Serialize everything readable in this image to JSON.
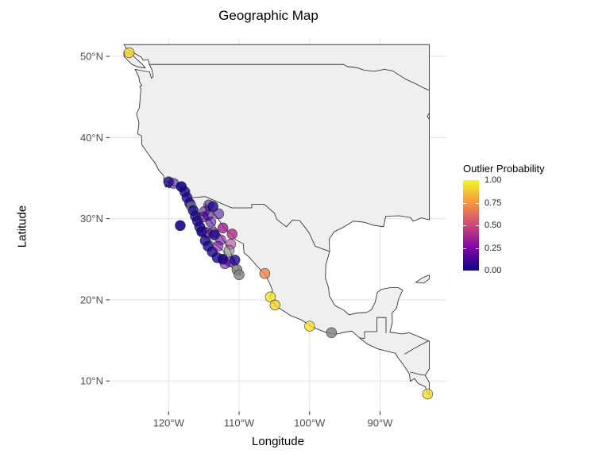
{
  "title": "Geographic Map",
  "axes": {
    "x": {
      "label": "Longitude",
      "ticks": [
        {
          "value": -120,
          "label": "120°W"
        },
        {
          "value": -110,
          "label": "110°W"
        },
        {
          "value": -100,
          "label": "100°W"
        },
        {
          "value": -90,
          "label": "90°W"
        }
      ]
    },
    "y": {
      "label": "Latitude",
      "ticks": [
        {
          "value": 50,
          "label": "50°N"
        },
        {
          "value": 40,
          "label": "40°N"
        },
        {
          "value": 30,
          "label": "30°N"
        },
        {
          "value": 20,
          "label": "20°N"
        },
        {
          "value": 10,
          "label": "10°N"
        }
      ]
    }
  },
  "legend": {
    "title": "Outlier Probability",
    "ticks": [
      {
        "value": 1.0,
        "label": "1.00"
      },
      {
        "value": 0.75,
        "label": "0.75"
      },
      {
        "value": 0.5,
        "label": "0.50"
      },
      {
        "value": 0.25,
        "label": "0.25"
      },
      {
        "value": 0.0,
        "label": "0.00"
      }
    ],
    "colormap": "plasma",
    "colors": {
      "0": "#0d0887",
      "0.25": "#7e03a8",
      "0.5": "#cc4778",
      "0.75": "#f89441",
      "1": "#f0f921"
    },
    "na_color": "#7f7f7f"
  },
  "chart_data": {
    "type": "scatter",
    "title": "Geographic Map",
    "xlabel": "Longitude",
    "ylabel": "Latitude",
    "xlim": [
      -128.4,
      -80.6
    ],
    "ylim": [
      6.3,
      52.1
    ],
    "map_clip": {
      "lon": [
        -126.35,
        -83.0
      ],
      "lat": [
        7.0,
        51.45
      ]
    },
    "grid": true,
    "color_variable": "outlier_probability",
    "color_range": [
      0,
      1
    ],
    "points": [
      {
        "lon": -125.6,
        "lat": 50.45,
        "p": 0.9,
        "n": 2
      },
      {
        "lon": -120.0,
        "lat": 34.55,
        "p": 0.03,
        "n": 2
      },
      {
        "lon": -119.3,
        "lat": 34.35,
        "p": 0.1,
        "n": 1
      },
      {
        "lon": -118.2,
        "lat": 33.95,
        "p": 0.02,
        "n": 3
      },
      {
        "lon": -117.7,
        "lat": 33.3,
        "p": 0.02,
        "n": 2
      },
      {
        "lon": -117.4,
        "lat": 32.6,
        "p": 0.04,
        "n": 2
      },
      {
        "lon": -117.0,
        "lat": 31.9,
        "p": 0.02,
        "n": 2
      },
      {
        "lon": -116.8,
        "lat": 31.55,
        "p": null,
        "n": 1
      },
      {
        "lon": -116.5,
        "lat": 31.0,
        "p": 0.03,
        "n": 2
      },
      {
        "lon": -116.2,
        "lat": 30.3,
        "p": 0.02,
        "n": 2
      },
      {
        "lon": -115.9,
        "lat": 29.7,
        "p": 0.04,
        "n": 2
      },
      {
        "lon": -115.6,
        "lat": 29.0,
        "p": 0.03,
        "n": 2
      },
      {
        "lon": -115.3,
        "lat": 28.4,
        "p": 0.02,
        "n": 3
      },
      {
        "lon": -118.35,
        "lat": 29.15,
        "p": 0.04,
        "n": 3
      },
      {
        "lon": -114.9,
        "lat": 30.9,
        "p": 0.15,
        "n": 1
      },
      {
        "lon": -115.1,
        "lat": 30.2,
        "p": 0.12,
        "n": 1
      },
      {
        "lon": -114.3,
        "lat": 31.7,
        "p": 0.1,
        "n": 1
      },
      {
        "lon": -113.7,
        "lat": 31.5,
        "p": 0.03,
        "n": 2
      },
      {
        "lon": -112.9,
        "lat": 30.6,
        "p": 0.12,
        "n": 1
      },
      {
        "lon": -114.4,
        "lat": 30.4,
        "p": 0.1,
        "n": 1
      },
      {
        "lon": -114.0,
        "lat": 29.6,
        "p": 0.12,
        "n": 1
      },
      {
        "lon": -114.5,
        "lat": 28.3,
        "p": 0.15,
        "n": 1
      },
      {
        "lon": -113.7,
        "lat": 28.3,
        "p": 0.12,
        "n": 1
      },
      {
        "lon": -113.5,
        "lat": 28.0,
        "p": 0.03,
        "n": 2
      },
      {
        "lon": -112.3,
        "lat": 28.85,
        "p": 0.35,
        "n": 2
      },
      {
        "lon": -111.0,
        "lat": 28.1,
        "p": 0.4,
        "n": 2
      },
      {
        "lon": -111.2,
        "lat": 26.85,
        "p": 0.38,
        "n": 1
      },
      {
        "lon": -111.4,
        "lat": 26.1,
        "p": null,
        "n": 1
      },
      {
        "lon": -112.3,
        "lat": 25.0,
        "p": 0.02,
        "n": 3
      },
      {
        "lon": -114.8,
        "lat": 27.3,
        "p": 0.03,
        "n": 2
      },
      {
        "lon": -114.4,
        "lat": 26.6,
        "p": 0.02,
        "n": 2
      },
      {
        "lon": -113.8,
        "lat": 25.9,
        "p": 0.03,
        "n": 2
      },
      {
        "lon": -113.1,
        "lat": 25.2,
        "p": 0.02,
        "n": 2
      },
      {
        "lon": -112.6,
        "lat": 27.4,
        "p": 0.2,
        "n": 1
      },
      {
        "lon": -113.0,
        "lat": 26.6,
        "p": 0.22,
        "n": 1
      },
      {
        "lon": -112.0,
        "lat": 24.45,
        "p": 0.15,
        "n": 1
      },
      {
        "lon": -111.3,
        "lat": 24.7,
        "p": 0.12,
        "n": 1
      },
      {
        "lon": -110.6,
        "lat": 24.9,
        "p": 0.04,
        "n": 2
      },
      {
        "lon": -110.3,
        "lat": 23.7,
        "p": null,
        "n": 2
      },
      {
        "lon": -110.0,
        "lat": 23.1,
        "p": null,
        "n": 2
      },
      {
        "lon": -106.35,
        "lat": 23.25,
        "p": 0.7,
        "n": 2
      },
      {
        "lon": -105.55,
        "lat": 20.35,
        "p": 0.95,
        "n": 2
      },
      {
        "lon": -104.9,
        "lat": 19.35,
        "p": 0.9,
        "n": 2
      },
      {
        "lon": -100.0,
        "lat": 16.75,
        "p": 0.93,
        "n": 2
      },
      {
        "lon": -96.9,
        "lat": 15.95,
        "p": null,
        "n": 2
      },
      {
        "lon": -83.25,
        "lat": 8.4,
        "p": 0.92,
        "n": 2
      }
    ]
  }
}
